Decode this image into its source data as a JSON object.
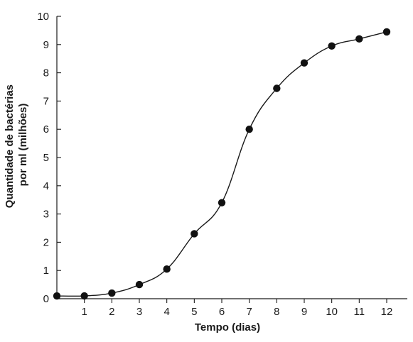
{
  "chart_data": {
    "type": "line",
    "xlabel": "Tempo (dias)",
    "ylabel_lines": [
      "Quantidade de bactérias",
      "por ml (milhões)"
    ],
    "xlim": [
      0,
      12
    ],
    "ylim": [
      0,
      10
    ],
    "x_ticks": [
      1,
      2,
      3,
      4,
      5,
      6,
      7,
      8,
      9,
      10,
      11,
      12
    ],
    "y_ticks": [
      0,
      1,
      2,
      3,
      4,
      5,
      6,
      7,
      8,
      9,
      10
    ],
    "grid": false,
    "series": [
      {
        "x": [
          0,
          1,
          2,
          3,
          4,
          5,
          6,
          7,
          8,
          9,
          10,
          11,
          12
        ],
        "values": [
          0.1,
          0.1,
          0.2,
          0.5,
          1.05,
          2.3,
          3.4,
          6.0,
          7.45,
          8.35,
          8.95,
          9.2,
          9.45
        ]
      }
    ],
    "colors": {
      "line": "#1a1a1a",
      "marker": "#111111"
    }
  }
}
